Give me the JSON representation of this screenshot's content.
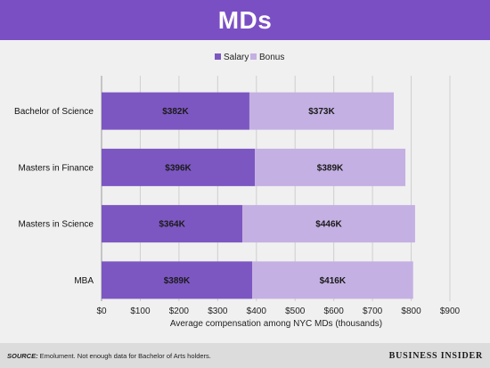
{
  "header": {
    "title": "MDs"
  },
  "legend": {
    "salary": "Salary",
    "bonus": "Bonus"
  },
  "colors": {
    "title_bg": "#7b4fc4",
    "salary": "#7c57c2",
    "bonus": "#c4b0e2",
    "plot_bg": "#f0f0f0",
    "footer_bg": "#dcdcdc"
  },
  "chart_data": {
    "type": "bar",
    "orientation": "horizontal",
    "stacked": true,
    "title": "MDs",
    "categories": [
      "Bachelor of Science",
      "Masters in Finance",
      "Masters in Science",
      "MBA"
    ],
    "series": [
      {
        "name": "Salary",
        "values": [
          382,
          396,
          364,
          389
        ],
        "labels": [
          "$382K",
          "$396K",
          "$364K",
          "$389K"
        ]
      },
      {
        "name": "Bonus",
        "values": [
          373,
          389,
          446,
          416
        ],
        "labels": [
          "$373K",
          "$389K",
          "$446K",
          "$416K"
        ]
      }
    ],
    "xlabel": "Average compensation among NYC MDs (thousands)",
    "xlim": [
      0,
      900
    ],
    "xticks": [
      0,
      100,
      200,
      300,
      400,
      500,
      600,
      700,
      800,
      900
    ],
    "xtick_labels": [
      "$0",
      "$100",
      "$200",
      "$300",
      "$400",
      "$500",
      "$600",
      "$700",
      "$800",
      "$900"
    ],
    "grid": true,
    "legend_position": "top"
  },
  "footer": {
    "source_label": "SOURCE:",
    "source_text": " Emolument. Not enough data for Bachelor of Arts holders.",
    "brand": "BUSINESS INSIDER"
  }
}
